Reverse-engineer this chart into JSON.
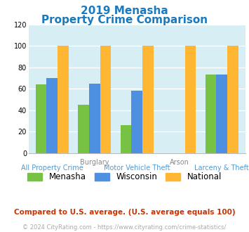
{
  "title_line1": "2019 Menasha",
  "title_line2": "Property Crime Comparison",
  "title_color": "#1a7abf",
  "cat_labels_top": [
    "",
    "Burglary",
    "",
    "Arson",
    ""
  ],
  "cat_labels_bot": [
    "All Property Crime",
    "",
    "Motor Vehicle Theft",
    "",
    "Larceny & Theft"
  ],
  "menasha": [
    64,
    45,
    26,
    0,
    73
  ],
  "wisconsin": [
    70,
    65,
    58,
    0,
    73
  ],
  "national": [
    100,
    100,
    100,
    100,
    100
  ],
  "bar_color_menasha": "#77c243",
  "bar_color_wisconsin": "#4d8fe0",
  "bar_color_national": "#ffb733",
  "plot_bg_color": "#d8eef5",
  "ylim": [
    0,
    120
  ],
  "yticks": [
    0,
    20,
    40,
    60,
    80,
    100,
    120
  ],
  "legend_labels": [
    "Menasha",
    "Wisconsin",
    "National"
  ],
  "footnote1": "Compared to U.S. average. (U.S. average equals 100)",
  "footnote2": "© 2024 CityRating.com - https://www.cityrating.com/crime-statistics/",
  "footnote1_color": "#cc3300",
  "footnote2_color": "#aaaaaa",
  "xlabel_top_color": "#888888",
  "xlabel_bot_color": "#5599cc"
}
